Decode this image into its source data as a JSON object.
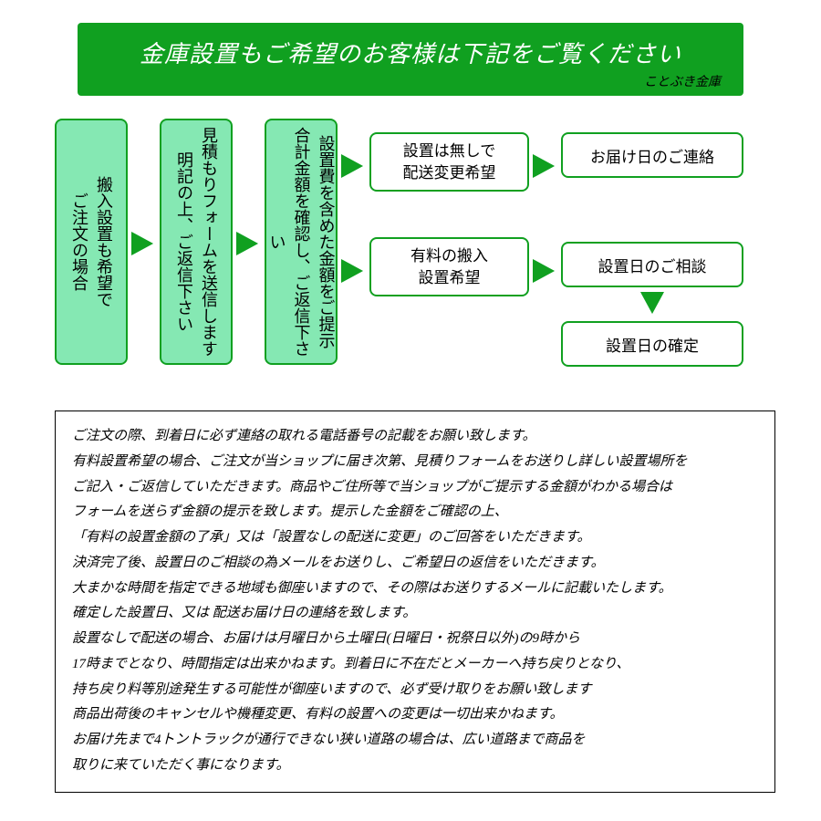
{
  "header": {
    "title": "金庫設置もご希望のお客様は下記をご覧ください",
    "subtitle": "ことぶき金庫",
    "bg_color": "#10a020",
    "title_color": "#ffffff"
  },
  "flow": {
    "box_border": "#10a020",
    "box_fill": "#85e8b3",
    "box_fill_light": "#ffffff",
    "b1": "搬入設置も希望で\nご注文の場合",
    "b2": "見積もりフォームを送信します\n明記の上、ご返信下さい",
    "b3": "設置費を含めた金額をご提示\n合計金額を確認し、ご返信下さい",
    "b4a": "設置は無しで\n配送変更希望",
    "b5a": "お届け日のご連絡",
    "b4b": "有料の搬入\n設置希望",
    "b5b": "設置日のご相談",
    "b6b": "設置日の確定"
  },
  "notes": [
    "ご注文の際、到着日に必ず連絡の取れる電話番号の記載をお願い致します。",
    "有料設置希望の場合、ご注文が当ショップに届き次第、見積りフォームをお送りし詳しい設置場所を",
    "ご記入・ご返信していただきます。商品やご住所等で当ショップがご提示する金額がわかる場合は",
    "フォームを送らず金額の提示を致します。提示した金額をご確認の上、",
    "「有料の設置金額の了承」又は「設置なしの配送に変更」のご回答をいただきます。",
    "決済完了後、設置日のご相談の為メールをお送りし、ご希望日の返信をいただきます。",
    "大まかな時間を指定できる地域も御座いますので、その際はお送りするメールに記載いたします。",
    "確定した設置日、又は 配送お届け日の連絡を致します。",
    "設置なしで配送の場合、お届けは月曜日から土曜日(日曜日・祝祭日以外)の9時から",
    "17時までとなり、時間指定は出来かねます。到着日に不在だとメーカーへ持ち戻りとなり、",
    "持ち戻り料等別途発生する可能性が御座いますので、必ず受け取りをお願い致します",
    "商品出荷後のキャンセルや機種変更、有料の設置への変更は一切出来かねます。",
    "お届け先まで4トントラックが通行できない狭い道路の場合は、広い道路まで商品を",
    "取りに来ていただく事になります。"
  ]
}
